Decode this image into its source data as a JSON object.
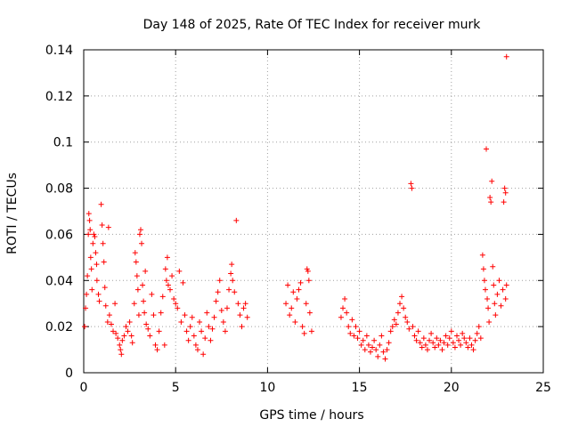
{
  "chart_data": {
    "type": "scatter",
    "title": "Day 148 of 2025, Rate Of TEC Index for receiver murk",
    "xlabel": "GPS time / hours",
    "ylabel": "ROTI / TECUs",
    "xlim": [
      0,
      25
    ],
    "ylim": [
      0,
      0.14
    ],
    "x_ticks": [
      0,
      5,
      10,
      15,
      20,
      25
    ],
    "y_ticks": [
      0,
      0.02,
      0.04,
      0.06,
      0.08,
      0.1,
      0.12,
      0.14
    ],
    "x_tick_labels": [
      "0",
      "5",
      "10",
      "15",
      "20",
      "25"
    ],
    "y_tick_labels": [
      "0",
      "0.02",
      "0.04",
      "0.06",
      "0.08",
      "0.1",
      "0.12",
      "0.14"
    ],
    "grid": true,
    "marker": "plus",
    "color": "#ff0000",
    "series": [
      {
        "points": [
          [
            0.05,
            0.02
          ],
          [
            0.1,
            0.028
          ],
          [
            0.15,
            0.034
          ],
          [
            0.2,
            0.042
          ],
          [
            0.25,
            0.06
          ],
          [
            0.28,
            0.069
          ],
          [
            0.32,
            0.066
          ],
          [
            0.35,
            0.062
          ],
          [
            0.38,
            0.05
          ],
          [
            0.42,
            0.045
          ],
          [
            0.45,
            0.036
          ],
          [
            0.5,
            0.056
          ],
          [
            0.55,
            0.06
          ],
          [
            0.6,
            0.059
          ],
          [
            0.65,
            0.052
          ],
          [
            0.7,
            0.047
          ],
          [
            0.72,
            0.04
          ],
          [
            0.8,
            0.034
          ],
          [
            0.85,
            0.031
          ],
          [
            0.95,
            0.073
          ],
          [
            1.0,
            0.064
          ],
          [
            1.05,
            0.056
          ],
          [
            1.1,
            0.048
          ],
          [
            1.15,
            0.037
          ],
          [
            1.2,
            0.029
          ],
          [
            1.3,
            0.022
          ],
          [
            1.35,
            0.063
          ],
          [
            1.4,
            0.025
          ],
          [
            1.5,
            0.021
          ],
          [
            1.6,
            0.018
          ],
          [
            1.7,
            0.03
          ],
          [
            1.75,
            0.017
          ],
          [
            1.85,
            0.015
          ],
          [
            1.95,
            0.012
          ],
          [
            2.0,
            0.01
          ],
          [
            2.05,
            0.008
          ],
          [
            2.1,
            0.014
          ],
          [
            2.2,
            0.016
          ],
          [
            2.3,
            0.02
          ],
          [
            2.4,
            0.018
          ],
          [
            2.5,
            0.022
          ],
          [
            2.6,
            0.016
          ],
          [
            2.65,
            0.013
          ],
          [
            2.75,
            0.03
          ],
          [
            2.8,
            0.052
          ],
          [
            2.85,
            0.048
          ],
          [
            2.9,
            0.042
          ],
          [
            2.95,
            0.036
          ],
          [
            3.0,
            0.025
          ],
          [
            3.05,
            0.06
          ],
          [
            3.1,
            0.062
          ],
          [
            3.15,
            0.056
          ],
          [
            3.2,
            0.038
          ],
          [
            3.25,
            0.031
          ],
          [
            3.3,
            0.026
          ],
          [
            3.35,
            0.044
          ],
          [
            3.4,
            0.021
          ],
          [
            3.5,
            0.019
          ],
          [
            3.6,
            0.016
          ],
          [
            3.7,
            0.034
          ],
          [
            3.8,
            0.025
          ],
          [
            3.9,
            0.012
          ],
          [
            4.0,
            0.01
          ],
          [
            4.1,
            0.018
          ],
          [
            4.2,
            0.026
          ],
          [
            4.3,
            0.033
          ],
          [
            4.4,
            0.012
          ],
          [
            4.45,
            0.045
          ],
          [
            4.5,
            0.04
          ],
          [
            4.55,
            0.05
          ],
          [
            4.6,
            0.038
          ],
          [
            4.7,
            0.036
          ],
          [
            4.8,
            0.042
          ],
          [
            4.9,
            0.032
          ],
          [
            5.0,
            0.03
          ],
          [
            5.1,
            0.028
          ],
          [
            5.2,
            0.044
          ],
          [
            5.3,
            0.022
          ],
          [
            5.4,
            0.039
          ],
          [
            5.5,
            0.025
          ],
          [
            5.6,
            0.018
          ],
          [
            5.7,
            0.014
          ],
          [
            5.8,
            0.02
          ],
          [
            5.9,
            0.024
          ],
          [
            6.0,
            0.016
          ],
          [
            6.1,
            0.012
          ],
          [
            6.2,
            0.01
          ],
          [
            6.3,
            0.022
          ],
          [
            6.4,
            0.018
          ],
          [
            6.5,
            0.008
          ],
          [
            6.6,
            0.015
          ],
          [
            6.7,
            0.026
          ],
          [
            6.8,
            0.02
          ],
          [
            6.9,
            0.014
          ],
          [
            7.0,
            0.019
          ],
          [
            7.1,
            0.024
          ],
          [
            7.2,
            0.031
          ],
          [
            7.3,
            0.035
          ],
          [
            7.4,
            0.04
          ],
          [
            7.5,
            0.027
          ],
          [
            7.6,
            0.022
          ],
          [
            7.7,
            0.018
          ],
          [
            7.8,
            0.028
          ],
          [
            7.9,
            0.036
          ],
          [
            8.0,
            0.043
          ],
          [
            8.05,
            0.047
          ],
          [
            8.1,
            0.04
          ],
          [
            8.2,
            0.035
          ],
          [
            8.3,
            0.066
          ],
          [
            8.4,
            0.03
          ],
          [
            8.5,
            0.025
          ],
          [
            8.6,
            0.02
          ],
          [
            8.7,
            0.028
          ],
          [
            8.8,
            0.03
          ],
          [
            8.9,
            0.024
          ],
          [
            11.0,
            0.03
          ],
          [
            11.1,
            0.038
          ],
          [
            11.2,
            0.025
          ],
          [
            11.3,
            0.028
          ],
          [
            11.4,
            0.035
          ],
          [
            11.5,
            0.022
          ],
          [
            11.6,
            0.032
          ],
          [
            11.7,
            0.036
          ],
          [
            11.8,
            0.039
          ],
          [
            11.9,
            0.02
          ],
          [
            12.0,
            0.017
          ],
          [
            12.1,
            0.03
          ],
          [
            12.15,
            0.045
          ],
          [
            12.2,
            0.044
          ],
          [
            12.25,
            0.04
          ],
          [
            12.3,
            0.026
          ],
          [
            12.4,
            0.018
          ],
          [
            14.0,
            0.024
          ],
          [
            14.1,
            0.028
          ],
          [
            14.2,
            0.032
          ],
          [
            14.3,
            0.026
          ],
          [
            14.4,
            0.02
          ],
          [
            14.5,
            0.017
          ],
          [
            14.6,
            0.023
          ],
          [
            14.7,
            0.016
          ],
          [
            14.8,
            0.02
          ],
          [
            14.9,
            0.015
          ],
          [
            15.0,
            0.018
          ],
          [
            15.1,
            0.012
          ],
          [
            15.2,
            0.014
          ],
          [
            15.3,
            0.01
          ],
          [
            15.4,
            0.016
          ],
          [
            15.5,
            0.012
          ],
          [
            15.6,
            0.009
          ],
          [
            15.7,
            0.011
          ],
          [
            15.8,
            0.014
          ],
          [
            15.9,
            0.01
          ],
          [
            16.0,
            0.007
          ],
          [
            16.1,
            0.012
          ],
          [
            16.2,
            0.016
          ],
          [
            16.3,
            0.009
          ],
          [
            16.4,
            0.006
          ],
          [
            16.5,
            0.01
          ],
          [
            16.6,
            0.013
          ],
          [
            16.7,
            0.018
          ],
          [
            16.8,
            0.02
          ],
          [
            16.9,
            0.023
          ],
          [
            17.0,
            0.021
          ],
          [
            17.1,
            0.026
          ],
          [
            17.2,
            0.03
          ],
          [
            17.3,
            0.033
          ],
          [
            17.4,
            0.028
          ],
          [
            17.5,
            0.024
          ],
          [
            17.6,
            0.022
          ],
          [
            17.7,
            0.019
          ],
          [
            17.8,
            0.082
          ],
          [
            17.85,
            0.08
          ],
          [
            17.9,
            0.02
          ],
          [
            18.0,
            0.016
          ],
          [
            18.1,
            0.014
          ],
          [
            18.2,
            0.018
          ],
          [
            18.3,
            0.013
          ],
          [
            18.4,
            0.011
          ],
          [
            18.5,
            0.015
          ],
          [
            18.6,
            0.012
          ],
          [
            18.7,
            0.01
          ],
          [
            18.8,
            0.014
          ],
          [
            18.9,
            0.017
          ],
          [
            19.0,
            0.013
          ],
          [
            19.1,
            0.011
          ],
          [
            19.2,
            0.015
          ],
          [
            19.3,
            0.012
          ],
          [
            19.4,
            0.014
          ],
          [
            19.5,
            0.01
          ],
          [
            19.6,
            0.013
          ],
          [
            19.7,
            0.016
          ],
          [
            19.8,
            0.012
          ],
          [
            19.9,
            0.015
          ],
          [
            20.0,
            0.018
          ],
          [
            20.1,
            0.013
          ],
          [
            20.2,
            0.011
          ],
          [
            20.3,
            0.016
          ],
          [
            20.4,
            0.014
          ],
          [
            20.5,
            0.012
          ],
          [
            20.6,
            0.017
          ],
          [
            20.7,
            0.015
          ],
          [
            20.8,
            0.013
          ],
          [
            20.9,
            0.011
          ],
          [
            21.0,
            0.015
          ],
          [
            21.1,
            0.012
          ],
          [
            21.2,
            0.01
          ],
          [
            21.3,
            0.014
          ],
          [
            21.4,
            0.017
          ],
          [
            21.5,
            0.02
          ],
          [
            21.6,
            0.015
          ],
          [
            21.7,
            0.051
          ],
          [
            21.75,
            0.045
          ],
          [
            21.8,
            0.04
          ],
          [
            21.85,
            0.036
          ],
          [
            21.9,
            0.097
          ],
          [
            21.95,
            0.032
          ],
          [
            22.0,
            0.028
          ],
          [
            22.05,
            0.022
          ],
          [
            22.1,
            0.076
          ],
          [
            22.15,
            0.074
          ],
          [
            22.2,
            0.083
          ],
          [
            22.25,
            0.046
          ],
          [
            22.3,
            0.038
          ],
          [
            22.35,
            0.03
          ],
          [
            22.4,
            0.025
          ],
          [
            22.5,
            0.034
          ],
          [
            22.6,
            0.04
          ],
          [
            22.7,
            0.029
          ],
          [
            22.8,
            0.036
          ],
          [
            22.85,
            0.074
          ],
          [
            22.9,
            0.08
          ],
          [
            22.95,
            0.078
          ],
          [
            23.0,
            0.137
          ],
          [
            23.0,
            0.038
          ],
          [
            22.95,
            0.032
          ]
        ]
      }
    ]
  }
}
